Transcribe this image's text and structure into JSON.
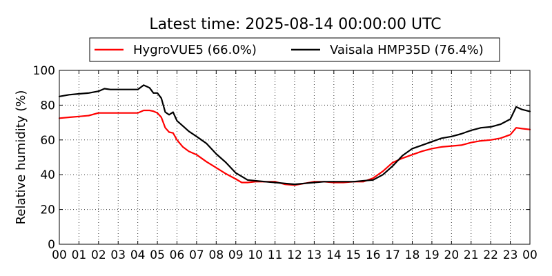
{
  "chart_data": {
    "type": "line",
    "title": "Latest time: 2025-08-14 00:00:00 UTC",
    "xlabel": "",
    "ylabel": "Relative humidity (%)",
    "xlim": [
      0,
      24
    ],
    "ylim": [
      0,
      100
    ],
    "x_tick_labels": [
      "00",
      "01",
      "02",
      "03",
      "04",
      "05",
      "06",
      "07",
      "08",
      "09",
      "10",
      "11",
      "12",
      "13",
      "14",
      "15",
      "16",
      "17",
      "18",
      "19",
      "20",
      "21",
      "22",
      "23",
      "00"
    ],
    "y_ticks": [
      0,
      20,
      40,
      60,
      80,
      100
    ],
    "grid": true,
    "legend_placement": "top-center",
    "series": [
      {
        "name": "HygroVUE5 (66.0%)",
        "color": "#ff0000",
        "x": [
          0,
          0.5,
          1,
          1.5,
          2,
          2.5,
          3,
          3.5,
          4,
          4.3,
          4.6,
          4.8,
          5,
          5.2,
          5.4,
          5.6,
          5.8,
          6,
          6.3,
          6.6,
          7,
          7.5,
          8,
          8.5,
          9,
          9.3,
          9.6,
          10,
          10.5,
          11,
          11.5,
          12,
          12.5,
          13,
          13.5,
          14,
          14.5,
          15,
          15.5,
          16,
          16.5,
          17,
          17.5,
          18,
          18.5,
          19,
          19.5,
          20,
          20.5,
          21,
          21.5,
          22,
          22.5,
          23,
          23.3,
          23.6,
          24
        ],
        "y": [
          72.5,
          73,
          73.5,
          74,
          75.5,
          75.5,
          75.5,
          75.5,
          75.5,
          77,
          77,
          76.5,
          75.5,
          73,
          67,
          64.5,
          64,
          60,
          56,
          53.5,
          51.5,
          47.5,
          44,
          40.5,
          37.5,
          35.5,
          35.5,
          36,
          36,
          36,
          34.5,
          34,
          35,
          36,
          36,
          35.5,
          35.5,
          36,
          36,
          38,
          42,
          47,
          49.5,
          51.5,
          53.5,
          55,
          56,
          56.5,
          57,
          58.5,
          59.5,
          60,
          61,
          63,
          67,
          66.5,
          66
        ]
      },
      {
        "name": "Vaisala HMP35D (76.4%)",
        "color": "#000000",
        "x": [
          0,
          0.5,
          1,
          1.5,
          2,
          2.3,
          2.6,
          3,
          3.5,
          4,
          4.3,
          4.6,
          4.8,
          5,
          5.2,
          5.4,
          5.6,
          5.8,
          6,
          6.3,
          6.6,
          7,
          7.5,
          8,
          8.5,
          9,
          9.3,
          9.6,
          10,
          10.5,
          11,
          11.5,
          12,
          12.5,
          13,
          13.5,
          14,
          14.5,
          15,
          15.5,
          16,
          16.5,
          17,
          17.5,
          18,
          18.5,
          19,
          19.5,
          20,
          20.5,
          21,
          21.5,
          22,
          22.5,
          23,
          23.3,
          23.6,
          24
        ],
        "y": [
          85,
          86,
          86.5,
          87,
          88,
          89.5,
          89,
          89,
          89,
          89,
          91.5,
          90,
          87,
          87,
          84,
          76,
          74.5,
          76,
          71,
          68,
          65,
          62,
          58,
          52,
          47,
          41,
          39,
          37,
          36.5,
          36,
          35.5,
          35,
          34.5,
          35,
          35.5,
          36,
          36,
          36,
          36,
          36.5,
          37,
          40,
          45,
          51,
          55,
          57,
          59,
          61,
          62,
          63.5,
          65.5,
          67,
          67.5,
          69,
          72,
          79,
          77.5,
          76.4
        ]
      }
    ]
  }
}
